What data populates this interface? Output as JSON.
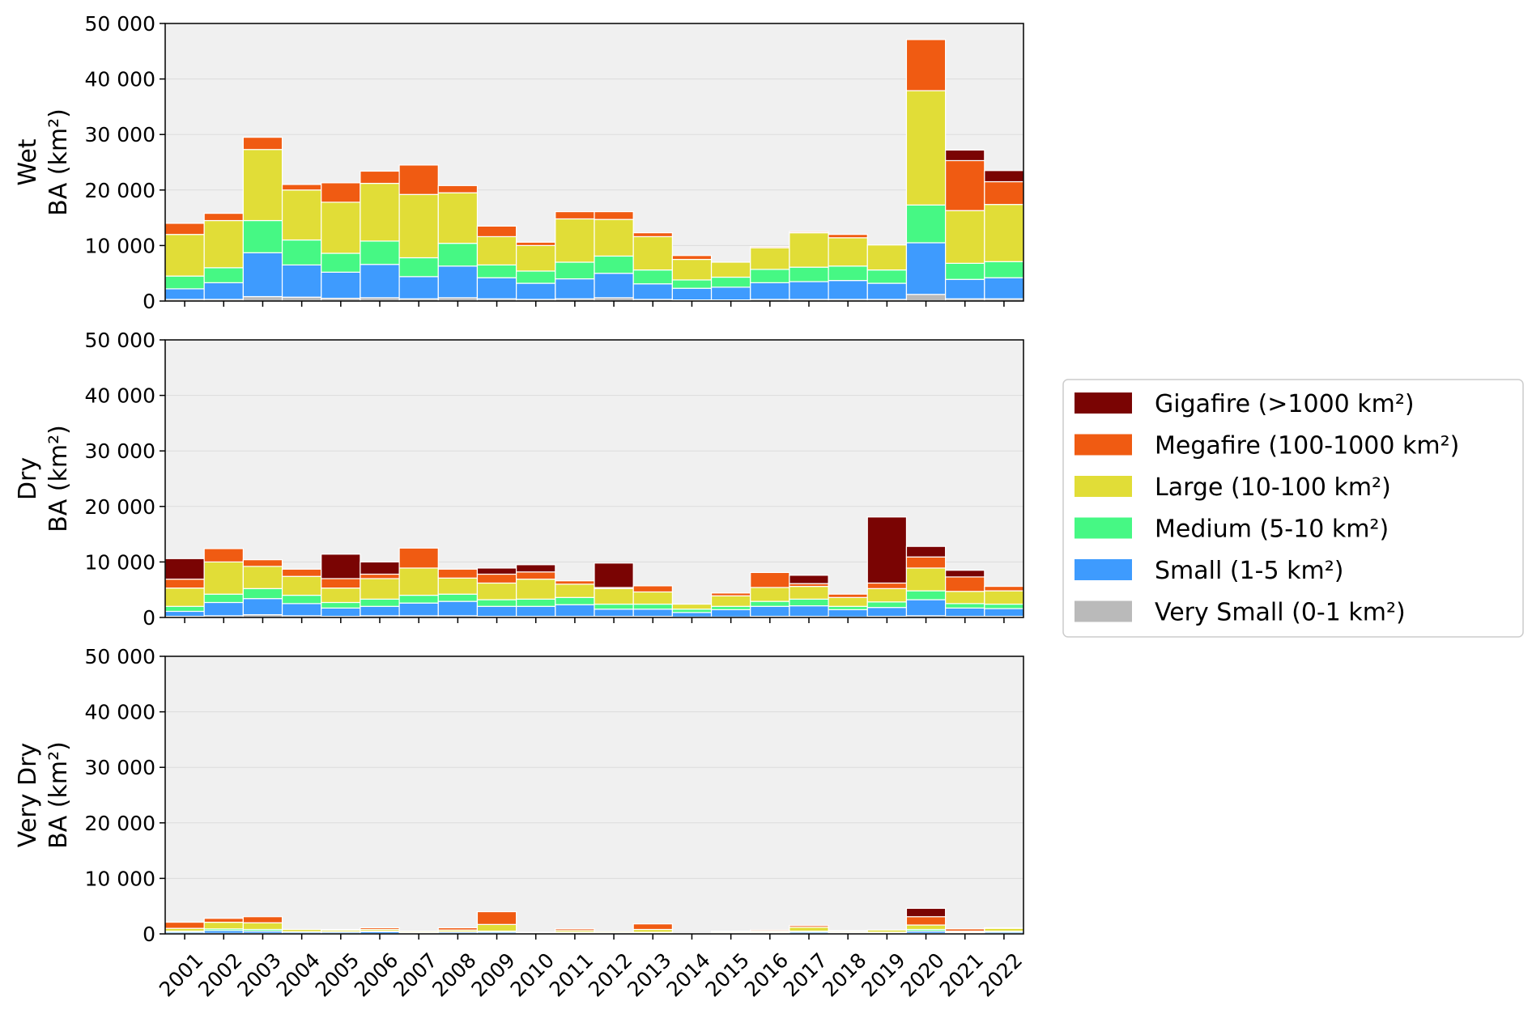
{
  "chart_data": {
    "type": "bar",
    "stacked": true,
    "years": [
      "2001",
      "2002",
      "2003",
      "2004",
      "2005",
      "2006",
      "2007",
      "2008",
      "2009",
      "2010",
      "2011",
      "2012",
      "2013",
      "2014",
      "2015",
      "2016",
      "2017",
      "2018",
      "2019",
      "2020",
      "2021",
      "2022"
    ],
    "ylim": [
      0,
      50000
    ],
    "yticks": [
      0,
      10000,
      20000,
      30000,
      40000,
      50000
    ],
    "ytick_labels": [
      "0",
      "10 000",
      "20 000",
      "30 000",
      "40 000",
      "50 000"
    ],
    "grid": true,
    "legend_placement": "right",
    "legend": [
      {
        "key": "giga",
        "label": "Gigafire (>1000 km²)",
        "color": "#7a0403"
      },
      {
        "key": "mega",
        "label": "Megafire (100-1000 km²)",
        "color": "#f05b12"
      },
      {
        "key": "large",
        "label": "Large (10-100 km²)",
        "color": "#e1dd37"
      },
      {
        "key": "medium",
        "label": "Medium (5-10 km²)",
        "color": "#46f884"
      },
      {
        "key": "small",
        "label": "Small (1-5 km²)",
        "color": "#3e9bfe"
      },
      {
        "key": "vsmall",
        "label": "Very Small (0-1 km²)",
        "color": "#bababa"
      }
    ],
    "panels": [
      {
        "ylabel_line1": "Wet",
        "ylabel_line2": "BA (km²)",
        "series": {
          "vsmall": [
            300,
            300,
            800,
            700,
            500,
            600,
            400,
            600,
            400,
            300,
            400,
            600,
            300,
            200,
            200,
            300,
            300,
            300,
            300,
            1200,
            400,
            400
          ],
          "small": [
            1900,
            3000,
            7900,
            5800,
            4700,
            6000,
            4000,
            5700,
            3800,
            2900,
            3600,
            4400,
            2800,
            2100,
            2300,
            3000,
            3200,
            3400,
            2900,
            9300,
            3500,
            3800
          ],
          "medium": [
            2300,
            2700,
            5800,
            4500,
            3400,
            4200,
            3400,
            4100,
            2300,
            2200,
            3000,
            3100,
            2500,
            1500,
            1800,
            2400,
            2600,
            2600,
            2400,
            6800,
            2900,
            2900
          ],
          "large": [
            7500,
            8500,
            12800,
            9000,
            9200,
            10400,
            11400,
            9100,
            5100,
            4600,
            7800,
            6600,
            6000,
            3700,
            2700,
            3900,
            6200,
            5100,
            4500,
            20600,
            9500,
            10300
          ],
          "mega": [
            2000,
            1300,
            2200,
            1000,
            3500,
            2200,
            5300,
            1300,
            1900,
            600,
            1300,
            1400,
            700,
            700,
            0,
            200,
            200,
            600,
            0,
            9200,
            9000,
            4100
          ],
          "giga": [
            0,
            0,
            0,
            0,
            0,
            0,
            0,
            0,
            0,
            0,
            0,
            0,
            0,
            0,
            0,
            0,
            0,
            0,
            0,
            0,
            1900,
            2000
          ]
        }
      },
      {
        "ylabel_line1": "Dry",
        "ylabel_line2": "BA (km²)",
        "series": {
          "vsmall": [
            200,
            300,
            500,
            300,
            200,
            300,
            300,
            300,
            200,
            200,
            200,
            200,
            200,
            100,
            100,
            200,
            200,
            100,
            200,
            300,
            200,
            200
          ],
          "small": [
            900,
            2400,
            2900,
            2200,
            1500,
            1700,
            2300,
            2600,
            1800,
            1800,
            2100,
            1300,
            1300,
            800,
            1300,
            1800,
            1900,
            1300,
            1600,
            2900,
            1500,
            1400
          ],
          "medium": [
            900,
            1500,
            1800,
            1500,
            1000,
            1300,
            1400,
            1300,
            1200,
            1300,
            1300,
            900,
            900,
            600,
            600,
            900,
            1200,
            600,
            1000,
            1600,
            800,
            800
          ],
          "large": [
            3300,
            5800,
            4000,
            3400,
            2600,
            3700,
            4900,
            2900,
            3000,
            3600,
            2400,
            2800,
            2200,
            900,
            1900,
            2500,
            2300,
            1600,
            2400,
            4100,
            2200,
            2400
          ],
          "mega": [
            1600,
            2400,
            1200,
            1300,
            1700,
            800,
            3600,
            1600,
            1600,
            1300,
            600,
            200,
            1100,
            0,
            500,
            2700,
            500,
            600,
            1000,
            2000,
            2600,
            800
          ],
          "giga": [
            3700,
            0,
            0,
            0,
            4400,
            2200,
            0,
            0,
            1100,
            1300,
            0,
            4400,
            0,
            0,
            0,
            0,
            1500,
            0,
            11900,
            1900,
            1200,
            0
          ]
        }
      },
      {
        "ylabel_line1": "Very Dry",
        "ylabel_line2": "BA (km²)",
        "series": {
          "vsmall": [
            50,
            100,
            100,
            50,
            50,
            50,
            50,
            50,
            50,
            50,
            50,
            50,
            50,
            0,
            50,
            50,
            50,
            50,
            50,
            100,
            50,
            50
          ],
          "small": [
            250,
            500,
            400,
            250,
            250,
            350,
            150,
            250,
            250,
            50,
            150,
            50,
            150,
            0,
            50,
            150,
            250,
            150,
            150,
            400,
            150,
            250
          ],
          "medium": [
            200,
            300,
            300,
            100,
            100,
            100,
            100,
            100,
            200,
            100,
            100,
            100,
            100,
            0,
            100,
            100,
            200,
            100,
            100,
            300,
            100,
            200
          ],
          "large": [
            500,
            1200,
            1200,
            400,
            300,
            300,
            200,
            300,
            1200,
            100,
            300,
            200,
            500,
            100,
            200,
            200,
            700,
            200,
            400,
            800,
            200,
            500
          ],
          "mega": [
            1100,
            700,
            1100,
            0,
            100,
            300,
            0,
            400,
            2300,
            0,
            300,
            0,
            1000,
            0,
            100,
            200,
            300,
            100,
            0,
            1500,
            400,
            100
          ],
          "giga": [
            0,
            0,
            0,
            0,
            0,
            0,
            0,
            0,
            0,
            0,
            0,
            0,
            0,
            0,
            0,
            0,
            0,
            0,
            0,
            1500,
            0,
            0
          ]
        }
      }
    ]
  }
}
